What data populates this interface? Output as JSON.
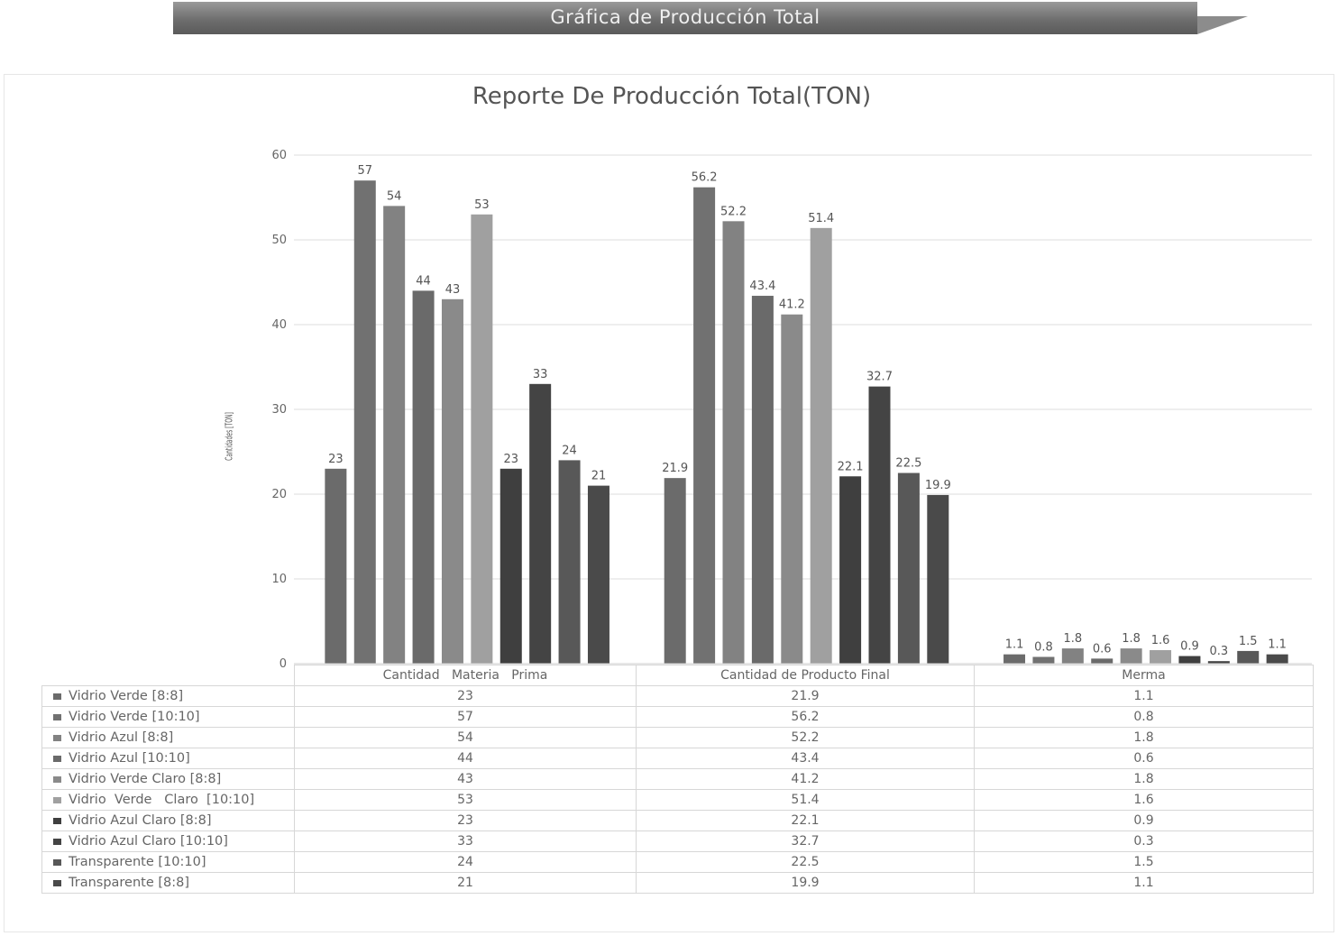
{
  "header": {
    "banner_title": "Gráfica de Producción Total"
  },
  "chart_data": {
    "type": "bar",
    "title": "Reporte De Producción Total(TON)",
    "ylabel": "Cantidades [TON]",
    "xlabel": "",
    "ylim": [
      0,
      60
    ],
    "yticks": [
      0,
      10,
      20,
      30,
      40,
      50,
      60
    ],
    "grid": true,
    "legend": "table-below",
    "categories": [
      "Cantidad   Materia   Prima",
      "Cantidad de Producto Final",
      "Merma"
    ],
    "series": [
      {
        "name": "Vidrio Verde [8:8]",
        "color": "#6b6b6b",
        "values": [
          23,
          21.9,
          1.1
        ]
      },
      {
        "name": "Vidrio Verde [10:10]",
        "color": "#717171",
        "values": [
          57,
          56.2,
          0.8
        ]
      },
      {
        "name": "Vidrio Azul [8:8]",
        "color": "#828282",
        "values": [
          54,
          52.2,
          1.8
        ]
      },
      {
        "name": "Vidrio Azul [10:10]",
        "color": "#6a6a6a",
        "values": [
          44,
          43.4,
          0.6
        ]
      },
      {
        "name": "Vidrio Verde Claro [8:8]",
        "color": "#8a8a8a",
        "values": [
          43,
          41.2,
          1.8
        ]
      },
      {
        "name": "Vidrio  Verde   Claro  [10:10]",
        "color": "#a0a0a0",
        "values": [
          53,
          51.4,
          1.6
        ]
      },
      {
        "name": "Vidrio Azul Claro [8:8]",
        "color": "#3f3f3f",
        "values": [
          23,
          22.1,
          0.9
        ]
      },
      {
        "name": "Vidrio Azul Claro [10:10]",
        "color": "#444444",
        "values": [
          33,
          32.7,
          0.3
        ]
      },
      {
        "name": "Transparente [10:10]",
        "color": "#585858",
        "values": [
          24,
          22.5,
          1.5
        ]
      },
      {
        "name": "Transparente [8:8]",
        "color": "#4a4a4a",
        "values": [
          21,
          19.9,
          1.1
        ]
      }
    ]
  }
}
